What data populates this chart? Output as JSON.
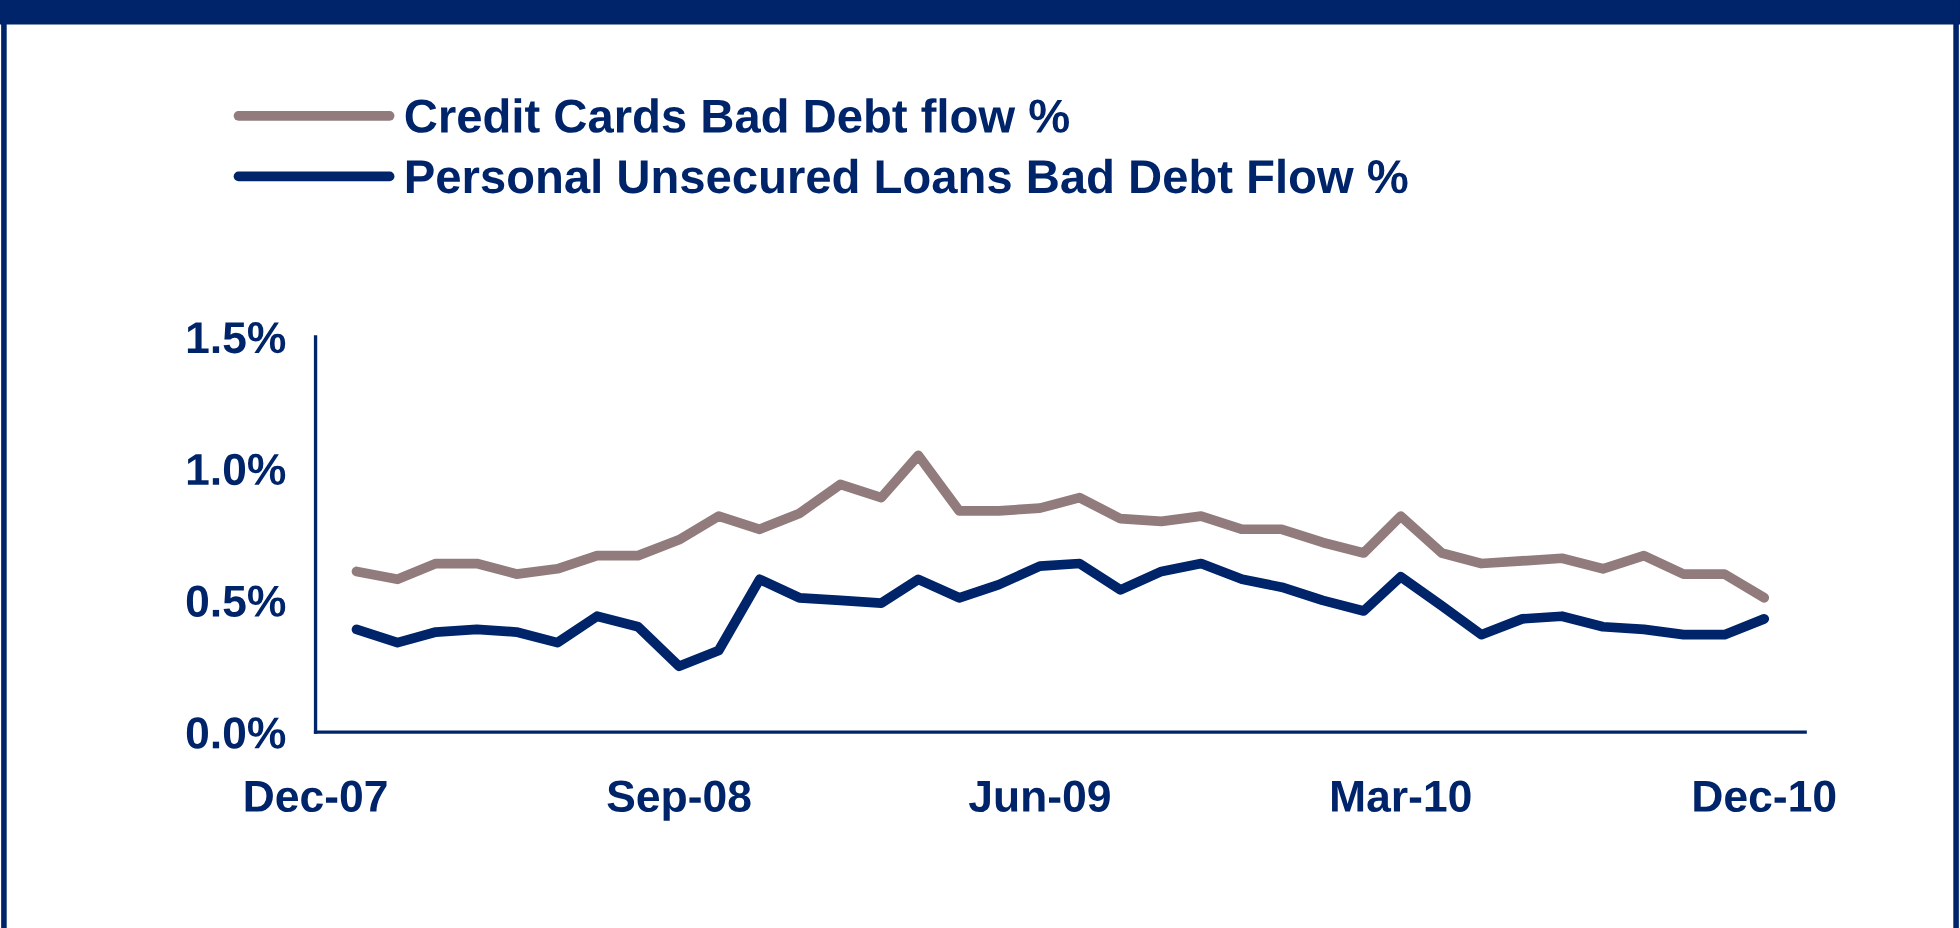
{
  "chart_data": {
    "type": "line",
    "x": [
      "2008-01",
      "2008-02",
      "2008-03",
      "2008-04",
      "2008-05",
      "2008-06",
      "2008-07",
      "2008-08",
      "2008-09",
      "2008-10",
      "2008-11",
      "2008-12",
      "2009-01",
      "2009-02",
      "2009-03",
      "2009-04",
      "2009-05",
      "2009-06",
      "2009-07",
      "2009-08",
      "2009-09",
      "2009-10",
      "2009-11",
      "2009-12",
      "2010-01",
      "2010-02",
      "2010-03",
      "2010-04",
      "2010-05",
      "2010-06",
      "2010-07",
      "2010-08",
      "2010-09",
      "2010-10",
      "2010-11",
      "2010-12"
    ],
    "series": [
      {
        "name": "Credit Cards Bad Debt flow %",
        "color": "#927b7d",
        "values": [
          0.61,
          0.58,
          0.64,
          0.64,
          0.6,
          0.62,
          0.67,
          0.67,
          0.73,
          0.82,
          0.77,
          0.83,
          0.94,
          0.89,
          1.05,
          0.84,
          0.84,
          0.85,
          0.89,
          0.81,
          0.8,
          0.82,
          0.77,
          0.77,
          0.72,
          0.68,
          0.82,
          0.68,
          0.64,
          0.65,
          0.66,
          0.62,
          0.67,
          0.6,
          0.6,
          0.51
        ]
      },
      {
        "name": "Personal Unsecured Loans Bad Debt Flow %",
        "color": "#002469",
        "values": [
          0.39,
          0.34,
          0.38,
          0.39,
          0.38,
          0.34,
          0.44,
          0.4,
          0.25,
          0.31,
          0.58,
          0.51,
          0.5,
          0.49,
          0.58,
          0.51,
          0.56,
          0.63,
          0.64,
          0.54,
          0.61,
          0.64,
          0.58,
          0.55,
          0.5,
          0.46,
          0.59,
          0.48,
          0.37,
          0.43,
          0.44,
          0.4,
          0.39,
          0.37,
          0.37,
          0.43
        ]
      }
    ],
    "xlim": [
      "2007-12",
      "2011-01"
    ],
    "xticks": [
      {
        "value": "2007-12",
        "label": "Dec-07"
      },
      {
        "value": "2008-09",
        "label": "Sep-08"
      },
      {
        "value": "2009-06",
        "label": "Jun-09"
      },
      {
        "value": "2010-03",
        "label": "Mar-10"
      },
      {
        "value": "2010-12",
        "label": "Dec-10"
      }
    ],
    "ylim": [
      0,
      1.5
    ],
    "yticks": [
      {
        "value": 0,
        "label": "0.0%"
      },
      {
        "value": 0.5,
        "label": "0.5%"
      },
      {
        "value": 1.0,
        "label": "1.0%"
      },
      {
        "value": 1.5,
        "label": "1.5%"
      }
    ],
    "grid": false,
    "legend": "top left",
    "marker": "none",
    "line_style": "solid"
  }
}
